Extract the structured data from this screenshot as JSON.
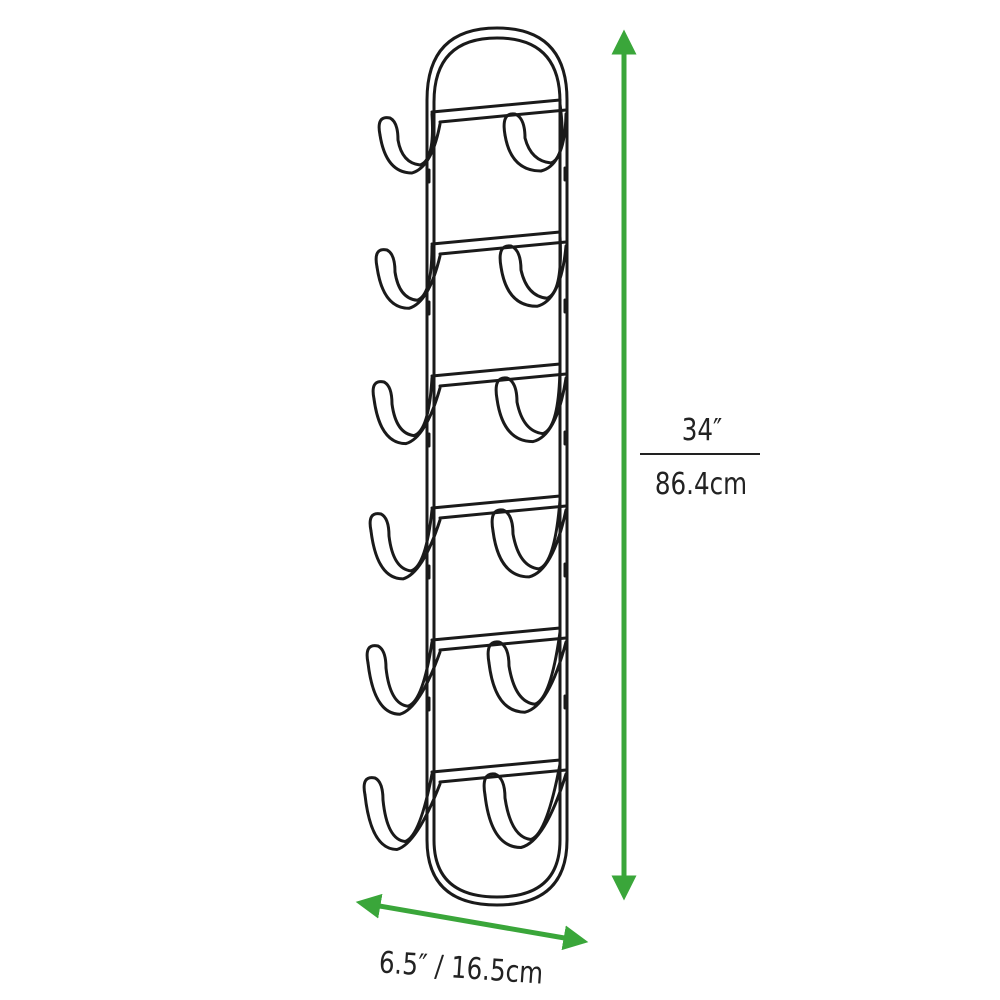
{
  "product": {
    "name_icon": "wall-mount-towel-rack-icon",
    "hook_rows": 6
  },
  "dimensions": {
    "height_in": "34″",
    "height_cm": "86.4cm",
    "width_label": "6.5″ / 16.5cm"
  },
  "colors": {
    "dimension_arrow": "#3aa63a",
    "product_line": "#1a1a1a",
    "text": "#222222",
    "background": "#ffffff"
  }
}
